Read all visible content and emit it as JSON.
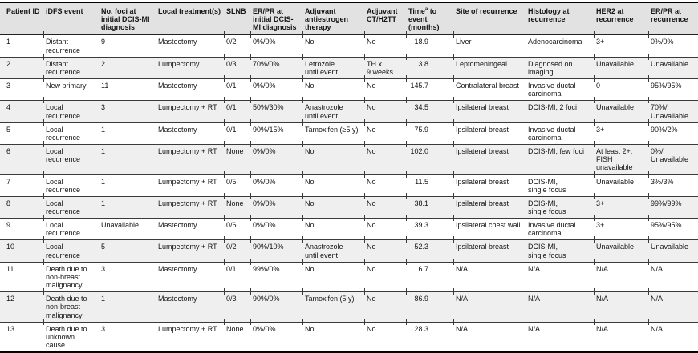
{
  "colors": {
    "header_bg": "#e2e2e2",
    "stripe_bg": "#efefef",
    "border": "#000000",
    "text": "#141414"
  },
  "table": {
    "columns": [
      {
        "key": "patient_id",
        "label": "Patient ID"
      },
      {
        "key": "idfs_event",
        "label": "iDFS event"
      },
      {
        "key": "foci",
        "label": "No. foci at\ninitial DCIS-MI\ndiagnosis"
      },
      {
        "key": "local_treatment",
        "label": "Local treatment(s)"
      },
      {
        "key": "slnb",
        "label": "SLNB"
      },
      {
        "key": "erpr_initial",
        "label": "ER/PR at\ninitial DCIS-\nMI diagnosis"
      },
      {
        "key": "antiestrogen",
        "label": "Adjuvant\nantiestrogen\ntherapy"
      },
      {
        "key": "ct_h2tt",
        "label": "Adjuvant\nCT/H2TT"
      },
      {
        "key": "time_to_event",
        "label": "Time^a^ to\nevent\n(months)"
      },
      {
        "key": "site",
        "label": "Site of recurrence"
      },
      {
        "key": "histology",
        "label": "Histology at\nrecurrence"
      },
      {
        "key": "her2",
        "label": "HER2 at\nrecurrence"
      },
      {
        "key": "erpr_recurrence",
        "label": "ER/PR at\nrecurrence"
      }
    ],
    "rows": [
      [
        "1",
        "Distant\nrecurrence",
        "9",
        "Mastectomy",
        "0/2",
        "0%/0%",
        "No",
        "No",
        "18.9",
        "Liver",
        "Adenocarcinoma",
        "3+",
        "0%/0%"
      ],
      [
        "2",
        "Distant\nrecurrence",
        "2",
        "Lumpectomy",
        "0/3",
        "70%/0%",
        "Letrozole\nuntil event",
        "TH x\n9 weeks",
        "3.8",
        "Leptomeningeal",
        "Diagnosed on\nimaging",
        "Unavailable",
        "Unavailable"
      ],
      [
        "3",
        "New primary",
        "11",
        "Mastectomy",
        "0/1",
        "0%/0%",
        "No",
        "No",
        "145.7",
        "Contralateral breast",
        "Invasive ductal\ncarcinoma",
        "0",
        "95%/95%"
      ],
      [
        "4",
        "Local\nrecurrence",
        "3",
        "Lumpectomy + RT",
        "0/1",
        "50%/30%",
        "Anastrozole\nuntil event",
        "No",
        "34.5",
        "Ipsilateral breast",
        "DCIS-MI, 2 foci",
        "Unavailable",
        "70%/\nUnavailable"
      ],
      [
        "5",
        "Local\nrecurrence",
        "1",
        "Mastectomy",
        "0/1",
        "90%/15%",
        "Tamoxifen (≥5 y)",
        "No",
        "75.9",
        "Ipsilateral breast",
        "Invasive ductal\ncarcinoma",
        "3+",
        "90%/2%"
      ],
      [
        "6",
        "Local\nrecurrence",
        "1",
        "Lumpectomy + RT",
        "None",
        "0%/0%",
        "No",
        "No",
        "102.0",
        "Ipsilateral breast",
        "DCIS-MI, few foci",
        "At least 2+,\nFISH\nunavailable",
        "0%/\nUnavailable"
      ],
      [
        "7",
        "Local\nrecurrence",
        "1",
        "Lumpectomy + RT",
        "0/5",
        "0%/0%",
        "No",
        "No",
        "11.5",
        "Ipsilateral breast",
        "DCIS-MI,\nsingle focus",
        "Unavailable",
        "3%/3%"
      ],
      [
        "8",
        "Local\nrecurrence",
        "1",
        "Lumpectomy + RT",
        "None",
        "0%/0%",
        "No",
        "No",
        "38.1",
        "Ipsilateral breast",
        "DCIS-MI,\nsingle focus",
        "3+",
        "99%/99%"
      ],
      [
        "9",
        "Local\nrecurrence",
        "Unavailable",
        "Mastectomy",
        "0/6",
        "0%/0%",
        "No",
        "No",
        "39.3",
        "Ipsilateral chest wall",
        "Invasive ductal\ncarcinoma",
        "3+",
        "95%/95%"
      ],
      [
        "10",
        "Local\nrecurrence",
        "5",
        "Lumpectomy + RT",
        "0/2",
        "90%/10%",
        "Anastrozole\nuntil event",
        "No",
        "52.3",
        "Ipsilateral breast",
        "DCIS-MI,\nsingle focus",
        "Unavailable",
        "Unavailable"
      ],
      [
        "11",
        "Death due to\nnon-breast\nmalignancy",
        "3",
        "Mastectomy",
        "0/1",
        "99%/0%",
        "No",
        "No",
        "6.7",
        "N/A",
        "N/A",
        "N/A",
        "N/A"
      ],
      [
        "12",
        "Death due to\nnon-breast\nmalignancy",
        "1",
        "Mastectomy",
        "0/3",
        "90%/0%",
        "Tamoxifen (5 y)",
        "No",
        "86.9",
        "N/A",
        "N/A",
        "N/A",
        "N/A"
      ],
      [
        "13",
        "Death due to\nunknown\ncause",
        "3",
        "Lumpectomy + RT",
        "None",
        "0%/0%",
        "No",
        "No",
        "28.3",
        "N/A",
        "N/A",
        "N/A",
        "N/A"
      ]
    ]
  }
}
